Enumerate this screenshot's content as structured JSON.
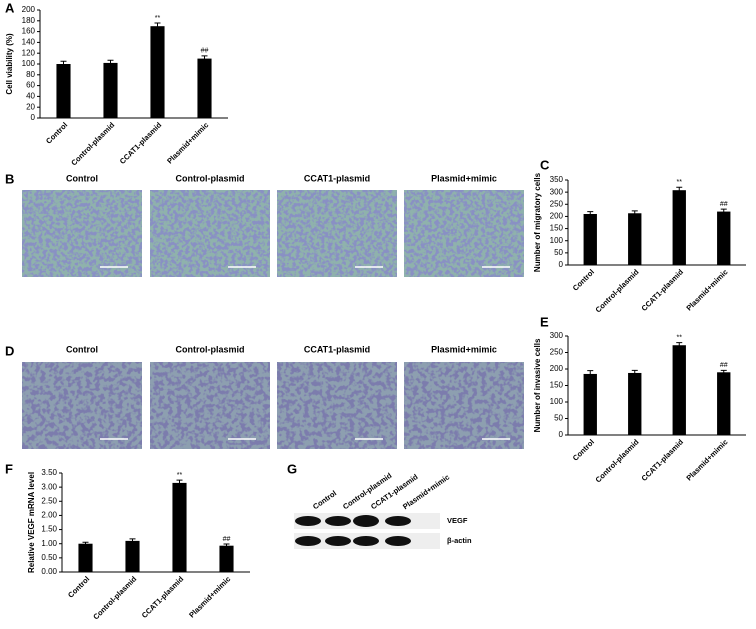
{
  "chart_data": [
    {
      "type": "bar",
      "label": "A",
      "ylabel": "Cell viability (%)",
      "categories": [
        "Control",
        "Control-plasmid",
        "CCAT1-plasmid",
        "Plasmid+mimic"
      ],
      "values": [
        100,
        102,
        170,
        110
      ],
      "errors": [
        5,
        5,
        6,
        5
      ],
      "annotations": [
        null,
        null,
        "**",
        "##"
      ],
      "color": "#000000",
      "ylim": [
        0,
        200
      ],
      "yticks": [
        0,
        20,
        40,
        60,
        80,
        100,
        120,
        140,
        160,
        180,
        200
      ]
    },
    {
      "type": "bar",
      "label": "C",
      "ylabel": "Number of migratory cells",
      "categories": [
        "Control",
        "Control-plasmid",
        "CCAT1-plasmid",
        "Plasmid+mimic"
      ],
      "values": [
        210,
        213,
        308,
        220
      ],
      "errors": [
        10,
        10,
        12,
        10
      ],
      "annotations": [
        null,
        null,
        "**",
        "##"
      ],
      "color": "#000000",
      "ylim": [
        0,
        350
      ],
      "yticks": [
        0,
        50,
        100,
        150,
        200,
        250,
        300,
        350
      ]
    },
    {
      "type": "bar",
      "label": "E",
      "ylabel": "Number of invasive cells",
      "categories": [
        "Control",
        "Control-plasmid",
        "CCAT1-plasmid",
        "Plasmid+mimic"
      ],
      "values": [
        185,
        188,
        272,
        190
      ],
      "errors": [
        10,
        8,
        8,
        6
      ],
      "annotations": [
        null,
        null,
        "**",
        "##"
      ],
      "color": "#000000",
      "ylim": [
        0,
        300
      ],
      "yticks": [
        0,
        50,
        100,
        150,
        200,
        250,
        300
      ]
    },
    {
      "type": "bar",
      "label": "F",
      "ylabel": "Relative VEGF mRNA level",
      "categories": [
        "Control",
        "Control-plasmid",
        "CCAT1-plasmid",
        "Plasmid+mimic"
      ],
      "values": [
        1.0,
        1.1,
        3.15,
        0.93
      ],
      "errors": [
        0.05,
        0.07,
        0.1,
        0.06
      ],
      "annotations": [
        null,
        null,
        "**",
        "##"
      ],
      "color": "#000000",
      "ylim": [
        0,
        3.5
      ],
      "yticks": [
        {
          "value": 0,
          "label": "0.00"
        },
        {
          "value": 0.5,
          "label": "0.50"
        },
        {
          "value": 1,
          "label": "1.00"
        },
        {
          "value": 1.5,
          "label": "1.50"
        },
        {
          "value": 2,
          "label": "2.00"
        },
        {
          "value": 2.5,
          "label": "2.50"
        },
        {
          "value": 3,
          "label": "3.00"
        },
        {
          "value": 3.5,
          "label": "3.50"
        }
      ]
    }
  ],
  "image_panels": [
    {
      "label": "B",
      "captions": [
        "Control",
        "Control-plasmid",
        "CCAT1-plasmid",
        "Plasmid+mimic"
      ]
    },
    {
      "label": "D",
      "captions": [
        "Control",
        "Control-plasmid",
        "CCAT1-plasmid",
        "Plasmid+mimic"
      ]
    }
  ],
  "blot": {
    "label": "G",
    "lanes": [
      "Control",
      "Control-plasmid",
      "CCAT1-plasmid",
      "Plasmid+mimic"
    ],
    "bands": [
      "VEGF",
      "β-actin"
    ]
  }
}
